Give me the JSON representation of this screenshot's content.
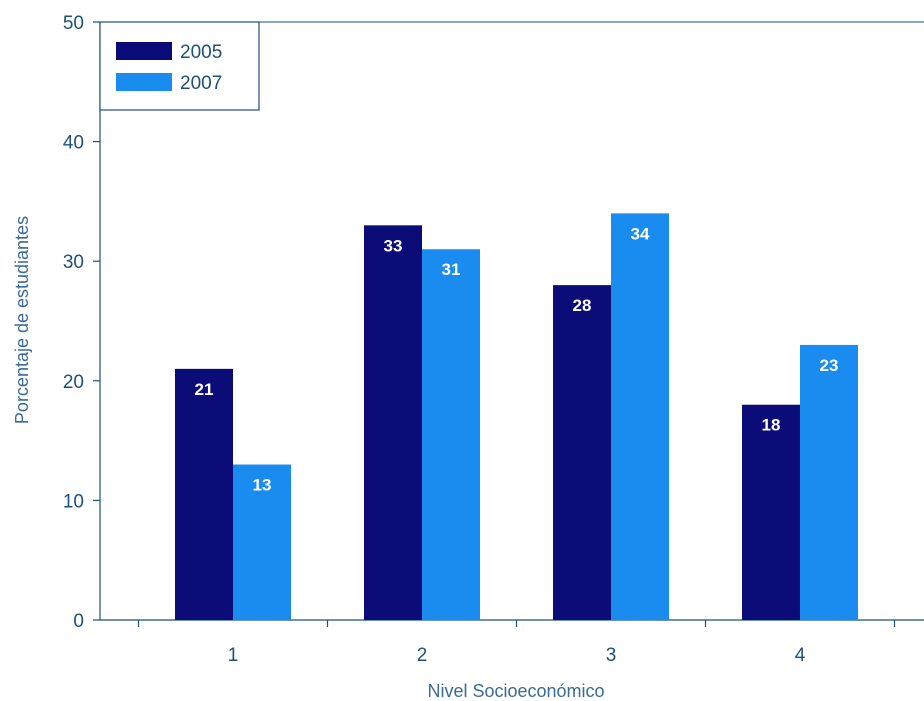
{
  "chart_data": {
    "type": "bar",
    "title": "",
    "xlabel": "Nivel Socioeconómico",
    "ylabel": "Porcentaje de estudiantes",
    "categories": [
      "1",
      "2",
      "3",
      "4"
    ],
    "ylim": [
      0,
      50
    ],
    "yticks": [
      0,
      10,
      20,
      30,
      40,
      50
    ],
    "grid": false,
    "legend_position": "top-left",
    "series": [
      {
        "name": "2005",
        "values": [
          21,
          33,
          28,
          18
        ],
        "labels": [
          "21",
          "33",
          "28",
          "18"
        ],
        "color": "#0c0c78"
      },
      {
        "name": "2007",
        "values": [
          13,
          31,
          34,
          23
        ],
        "labels": [
          "13",
          "31",
          "34",
          "23"
        ],
        "color": "#1a8cf0"
      }
    ]
  },
  "colors": {
    "axis": "#1f4f7a",
    "text": "#1f4f7a",
    "axis_title": "#3a6a96"
  }
}
